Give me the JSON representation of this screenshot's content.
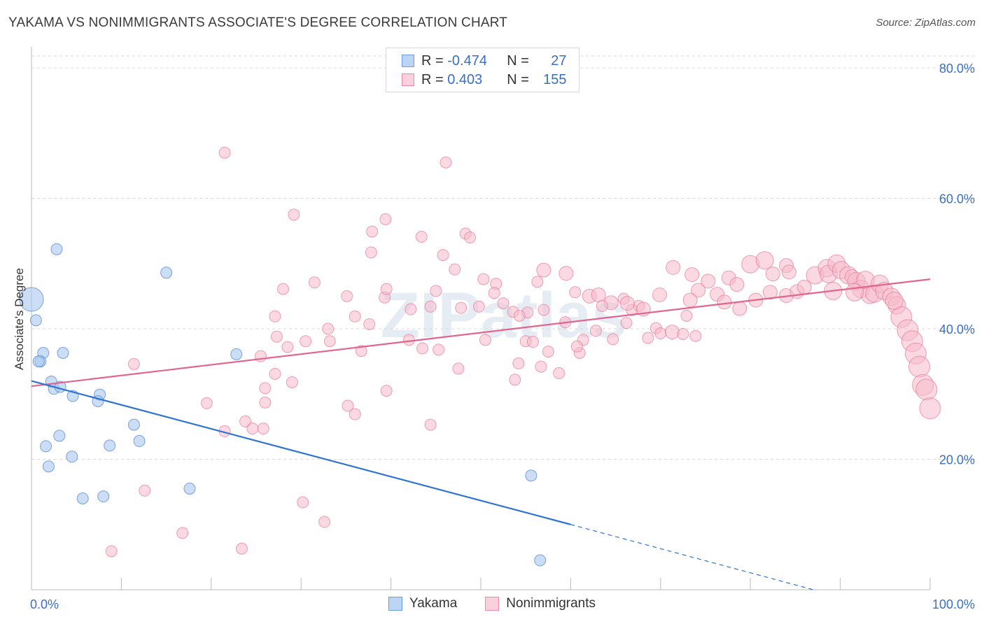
{
  "title": "YAKAMA VS NONIMMIGRANTS ASSOCIATE'S DEGREE CORRELATION CHART",
  "source": "Source: ZipAtlas.com",
  "watermark": "ZIPatlas",
  "legend_top": {
    "rows": [
      {
        "r_label": "R =",
        "r_value": "-0.474",
        "n_label": "N =",
        "n_value": "27"
      },
      {
        "r_label": "R =",
        "r_value": "0.403",
        "n_label": "N =",
        "n_value": "155"
      }
    ]
  },
  "colors": {
    "yakama_fill": "#a9c8ef",
    "yakama_stroke": "#5b8fd6",
    "yakama_line": "#2f74d0",
    "nonimm_fill": "#f6b9cb",
    "nonimm_stroke": "#e8789c",
    "nonimm_line": "#e2658f",
    "axis_text": "#3a6fc4",
    "grid": "#d9d9d9"
  },
  "chart_data": {
    "type": "scatter",
    "title": "YAKAMA VS NONIMMIGRANTS ASSOCIATE'S DEGREE CORRELATION CHART",
    "xlabel": "",
    "ylabel": "Associate's Degree",
    "xlim": [
      0,
      100
    ],
    "ylim": [
      0,
      83
    ],
    "x_tick_labels": [
      "0.0%",
      "100.0%"
    ],
    "y_ticks": [
      20,
      40,
      60,
      80
    ],
    "y_tick_labels": [
      "20.0%",
      "40.0%",
      "60.0%",
      "80.0%"
    ],
    "grid": true,
    "legend_position": "bottom",
    "series": [
      {
        "name": "Yakama",
        "r": -0.474,
        "n": 27,
        "trend": {
          "x0": 0,
          "y0": 32.0,
          "x1": 60,
          "y1": 10.0,
          "dash_to_x": 87,
          "dash_to_y": 0
        },
        "points": [
          [
            0,
            44.5,
            3
          ],
          [
            0.5,
            41.3,
            1
          ],
          [
            1.3,
            36.3,
            1
          ],
          [
            1,
            35,
            1
          ],
          [
            0.8,
            35,
            1
          ],
          [
            2.8,
            52.2,
            1
          ],
          [
            3.5,
            36.3,
            1
          ],
          [
            2.2,
            31.9,
            1
          ],
          [
            2.5,
            30.8,
            1
          ],
          [
            3.2,
            31.1,
            1
          ],
          [
            4.6,
            29.7,
            1
          ],
          [
            7.6,
            29.9,
            1
          ],
          [
            7.4,
            28.9,
            1
          ],
          [
            1.6,
            22.0,
            1
          ],
          [
            3.1,
            23.6,
            1
          ],
          [
            4.5,
            20.4,
            1
          ],
          [
            1.9,
            18.9,
            1
          ],
          [
            8.7,
            22.1,
            1
          ],
          [
            11.4,
            25.3,
            1
          ],
          [
            12.0,
            22.8,
            1
          ],
          [
            5.7,
            14.0,
            1
          ],
          [
            8,
            14.3,
            1
          ],
          [
            17.6,
            15.5,
            1
          ],
          [
            15,
            48.6,
            1
          ],
          [
            22.8,
            36.1,
            1
          ],
          [
            55.6,
            17.5,
            1
          ],
          [
            56.6,
            4.5,
            1
          ]
        ]
      },
      {
        "name": "Nonimmigrants",
        "r": 0.403,
        "n": 155,
        "trend": {
          "x0": 0,
          "y0": 31.2,
          "x1": 100,
          "y1": 47.6
        },
        "points": [
          [
            21.5,
            67.0,
            1
          ],
          [
            46.1,
            65.5,
            1
          ],
          [
            29.2,
            57.5,
            1
          ],
          [
            39.4,
            56.8,
            1
          ],
          [
            37.9,
            54.9,
            1
          ],
          [
            43.4,
            54.1,
            1
          ],
          [
            48.3,
            54.6,
            1
          ],
          [
            48.8,
            54.0,
            1
          ],
          [
            37.8,
            51.7,
            1
          ],
          [
            45.8,
            51.3,
            1
          ],
          [
            47.1,
            49.1,
            1
          ],
          [
            31.5,
            47.1,
            1
          ],
          [
            50.3,
            47.6,
            1
          ],
          [
            51.7,
            46.9,
            1
          ],
          [
            57.0,
            49.0,
            2
          ],
          [
            56.3,
            47.2,
            1
          ],
          [
            35.1,
            45.0,
            1
          ],
          [
            45,
            45.8,
            1
          ],
          [
            39.3,
            44.8,
            1
          ],
          [
            51.5,
            45.5,
            1
          ],
          [
            52.5,
            43.9,
            1
          ],
          [
            60.5,
            45.6,
            1
          ],
          [
            42.2,
            43.0,
            1
          ],
          [
            44.4,
            43.4,
            1
          ],
          [
            47.8,
            43.2,
            1
          ],
          [
            49.8,
            43.4,
            1
          ],
          [
            53.6,
            42.6,
            1
          ],
          [
            55.2,
            42.5,
            1
          ],
          [
            57.0,
            42.9,
            1
          ],
          [
            27.1,
            41.9,
            1
          ],
          [
            36,
            41.9,
            1
          ],
          [
            54.3,
            42.0,
            1
          ],
          [
            37.6,
            40.7,
            1
          ],
          [
            33.0,
            40.0,
            1
          ],
          [
            59.4,
            41.0,
            1
          ],
          [
            62.1,
            45.0,
            2
          ],
          [
            63.1,
            45.2,
            2
          ],
          [
            64.5,
            44.0,
            2
          ],
          [
            65.9,
            44.6,
            1
          ],
          [
            63.5,
            43.5,
            1
          ],
          [
            67.6,
            43.5,
            1
          ],
          [
            66.8,
            42.9,
            1
          ],
          [
            66.2,
            40.9,
            1
          ],
          [
            69.5,
            40.1,
            1
          ],
          [
            62.8,
            39.7,
            1
          ],
          [
            70.0,
            39.3,
            1
          ],
          [
            68.6,
            38.6,
            1
          ],
          [
            71.3,
            39.5,
            2
          ],
          [
            72.5,
            39.2,
            1
          ],
          [
            64.7,
            38.4,
            1
          ],
          [
            27.3,
            38.8,
            1
          ],
          [
            25.5,
            35.8,
            1
          ],
          [
            30.5,
            38.1,
            1
          ],
          [
            33.2,
            38.1,
            1
          ],
          [
            42.0,
            38.3,
            1
          ],
          [
            50.5,
            38.3,
            1
          ],
          [
            55.0,
            38.1,
            1
          ],
          [
            55.8,
            38.0,
            1
          ],
          [
            61.4,
            38.3,
            1
          ],
          [
            36.7,
            36.6,
            1
          ],
          [
            43.5,
            37.0,
            1
          ],
          [
            45.3,
            36.8,
            1
          ],
          [
            61.0,
            36.3,
            1
          ],
          [
            57.5,
            36.5,
            1
          ],
          [
            60.7,
            37.3,
            1
          ],
          [
            28.5,
            37.2,
            1
          ],
          [
            47.5,
            33.9,
            1
          ],
          [
            54.2,
            34.7,
            1
          ],
          [
            56.7,
            34.2,
            1
          ],
          [
            58.7,
            33.2,
            1
          ],
          [
            11.4,
            34.6,
            1
          ],
          [
            27.1,
            33.1,
            1
          ],
          [
            29,
            31.8,
            1
          ],
          [
            26,
            30.9,
            1
          ],
          [
            39.5,
            30.5,
            1
          ],
          [
            53.8,
            32.2,
            1
          ],
          [
            19.5,
            28.6,
            1
          ],
          [
            26.0,
            28.7,
            1
          ],
          [
            35.2,
            28.2,
            1
          ],
          [
            36.0,
            26.9,
            1
          ],
          [
            23.8,
            25.8,
            1
          ],
          [
            25.8,
            24.7,
            1
          ],
          [
            24.6,
            24.7,
            1
          ],
          [
            44.4,
            25.3,
            1
          ],
          [
            21.5,
            24.3,
            1
          ],
          [
            12.6,
            15.2,
            1
          ],
          [
            30.2,
            13.4,
            1
          ],
          [
            16.8,
            8.7,
            1
          ],
          [
            32.6,
            10.4,
            1
          ],
          [
            8.9,
            5.9,
            1
          ],
          [
            23.4,
            6.3,
            1
          ],
          [
            59.5,
            48.5,
            2
          ],
          [
            71.4,
            49.4,
            2
          ],
          [
            73.5,
            48.3,
            2
          ],
          [
            75.3,
            47.3,
            2
          ],
          [
            77.6,
            47.8,
            2
          ],
          [
            78.5,
            46.8,
            2
          ],
          [
            80.0,
            49.9,
            3
          ],
          [
            81.6,
            50.5,
            3
          ],
          [
            82.5,
            48.4,
            2
          ],
          [
            84.0,
            49.7,
            2
          ],
          [
            84.0,
            45.1,
            2
          ],
          [
            84.3,
            48.7,
            2
          ],
          [
            85.2,
            45.7,
            2
          ],
          [
            87.2,
            48.2,
            3
          ],
          [
            88.5,
            49.3,
            3
          ],
          [
            88.7,
            48.4,
            3
          ],
          [
            89.6,
            50.0,
            3
          ],
          [
            90.1,
            49.0,
            3
          ],
          [
            90.9,
            48.2,
            3
          ],
          [
            91.3,
            48.0,
            2
          ],
          [
            91.8,
            47.3,
            3
          ],
          [
            92.3,
            46.1,
            3
          ],
          [
            92.8,
            47.5,
            3
          ],
          [
            93.3,
            45.2,
            3
          ],
          [
            93.8,
            45.4,
            3
          ],
          [
            94.4,
            46.9,
            3
          ],
          [
            94.9,
            45.8,
            3
          ],
          [
            95.7,
            44.9,
            3
          ],
          [
            96.3,
            43.6,
            3
          ],
          [
            96.8,
            41.8,
            4
          ],
          [
            97.5,
            39.8,
            4
          ],
          [
            98.0,
            38.1,
            4
          ],
          [
            98.4,
            36.2,
            4
          ],
          [
            98.8,
            34.2,
            4
          ],
          [
            99.2,
            31.4,
            4
          ],
          [
            99.6,
            30.7,
            4
          ],
          [
            100.0,
            27.8,
            4
          ],
          [
            96.0,
            44.3,
            3
          ],
          [
            91.6,
            45.6,
            3
          ],
          [
            89.2,
            45.8,
            3
          ],
          [
            86.0,
            46.4,
            2
          ],
          [
            82.2,
            45.6,
            2
          ],
          [
            80.6,
            44.4,
            2
          ],
          [
            78.8,
            43.1,
            2
          ],
          [
            76.3,
            45.3,
            2
          ],
          [
            74.2,
            45.9,
            2
          ],
          [
            77.1,
            44.1,
            2
          ],
          [
            73.3,
            44.4,
            2
          ],
          [
            72.9,
            42.0,
            1
          ],
          [
            68.1,
            43.0,
            2
          ],
          [
            69.9,
            45.2,
            2
          ],
          [
            66.3,
            43.9,
            2
          ],
          [
            73.9,
            38.9,
            1
          ],
          [
            28.0,
            46.1,
            1
          ],
          [
            39.5,
            46.1,
            1
          ]
        ]
      }
    ]
  }
}
